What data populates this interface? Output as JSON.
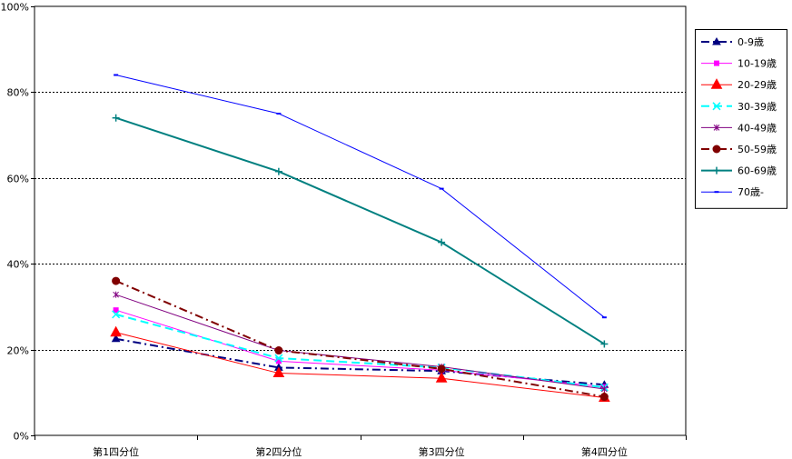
{
  "chart_data": {
    "type": "line",
    "title": "",
    "xlabel": "",
    "ylabel": "",
    "categories": [
      "第1四分位",
      "第2四分位",
      "第3四分位",
      "第4四分位"
    ],
    "ylim": [
      0,
      100
    ],
    "yticks": [
      0,
      20,
      40,
      60,
      80,
      100
    ],
    "ytick_labels": [
      "0%",
      "20%",
      "40%",
      "60%",
      "80%",
      "100%"
    ],
    "grid": "horizontal dotted at 20, 40, 60, 80",
    "legend_position": "right",
    "series": [
      {
        "name": "0-9歳",
        "values": [
          22.5,
          15.8,
          15.0,
          11.8
        ],
        "color": "#000080",
        "marker": "triangle",
        "dash": "dashdot",
        "width": 2
      },
      {
        "name": "10-19歳",
        "values": [
          29.2,
          17.3,
          15.2,
          11.3
        ],
        "color": "#ff00ff",
        "marker": "square",
        "dash": "solid",
        "width": 1
      },
      {
        "name": "20-29歳",
        "values": [
          24.0,
          14.5,
          13.3,
          8.8
        ],
        "color": "#ff0000",
        "marker": "triangle-big",
        "dash": "solid",
        "width": 1
      },
      {
        "name": "30-39歳",
        "values": [
          28.2,
          18.0,
          15.8,
          11.2
        ],
        "color": "#00ffff",
        "marker": "x",
        "dash": "dash",
        "width": 2
      },
      {
        "name": "40-49歳",
        "values": [
          32.8,
          19.8,
          16.0,
          10.8
        ],
        "color": "#800080",
        "marker": "star",
        "dash": "solid",
        "width": 1
      },
      {
        "name": "50-59歳",
        "values": [
          36.0,
          19.8,
          15.5,
          9.0
        ],
        "color": "#800000",
        "marker": "circle",
        "dash": "dashdot",
        "width": 2
      },
      {
        "name": "60-69歳",
        "values": [
          74.0,
          61.5,
          45.0,
          21.3
        ],
        "color": "#008080",
        "marker": "plus",
        "dash": "solid",
        "width": 2
      },
      {
        "name": "70歳-",
        "values": [
          84.0,
          75.0,
          57.5,
          27.5
        ],
        "color": "#0000ff",
        "marker": "dash",
        "dash": "solid",
        "width": 1
      }
    ]
  }
}
